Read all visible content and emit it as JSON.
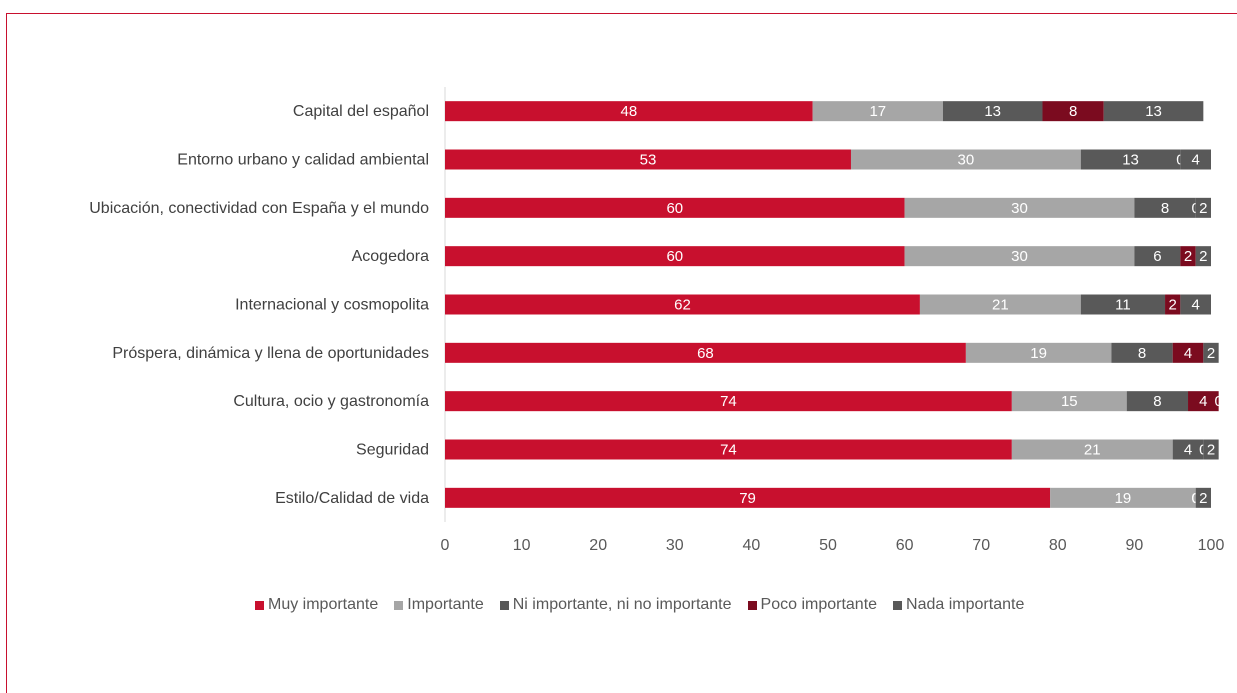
{
  "chart_data": {
    "type": "bar",
    "orientation": "horizontal",
    "stacked": true,
    "categories": [
      "Capital del español",
      "Entorno urbano y calidad ambiental",
      "Ubicación, conectividad con España y el mundo",
      "Acogedora",
      "Internacional y cosmopolita",
      "Próspera, dinámica y llena de oportunidades",
      "Cultura, ocio y gastronomía",
      "Seguridad",
      "Estilo/Calidad de vida"
    ],
    "series": [
      {
        "name": "Muy importante",
        "color": "#c8102e",
        "values": [
          48,
          53,
          60,
          60,
          62,
          68,
          74,
          74,
          79
        ]
      },
      {
        "name": "Importante",
        "color": "#a6a6a6",
        "values": [
          17,
          30,
          30,
          30,
          21,
          19,
          15,
          21,
          19
        ]
      },
      {
        "name": "Ni importante, ni no importante",
        "color": "#595959",
        "values": [
          13,
          13,
          8,
          6,
          11,
          8,
          8,
          4,
          0
        ]
      },
      {
        "name": "Poco importante",
        "color": "#7b0b1f",
        "values": [
          8,
          0,
          0,
          2,
          2,
          4,
          4,
          0,
          0
        ]
      },
      {
        "name": "Nada importante",
        "color": "#595959",
        "values": [
          13,
          4,
          2,
          2,
          4,
          2,
          0,
          2,
          2
        ]
      }
    ],
    "x_ticks": [
      0,
      10,
      20,
      30,
      40,
      50,
      60,
      70,
      80,
      90,
      100
    ],
    "xlim": [
      0,
      100
    ],
    "legend_position": "bottom",
    "grid": false
  }
}
